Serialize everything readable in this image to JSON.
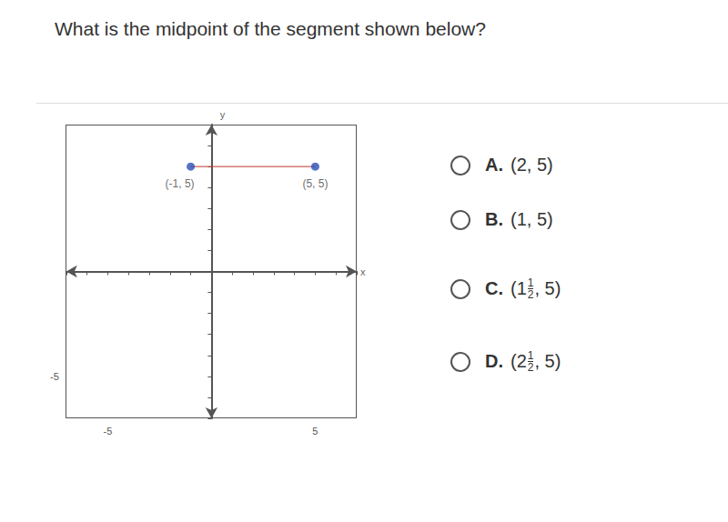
{
  "question": "What is the midpoint of the segment shown below?",
  "chart_data": {
    "type": "line",
    "xlabel": "x",
    "ylabel": "y",
    "xlim": [
      -7,
      7
    ],
    "ylim": [
      -7,
      7
    ],
    "xticks": [
      -5,
      5
    ],
    "yticks": [
      -5
    ],
    "grid": false,
    "color": "#c0392b",
    "marker": "circle",
    "points": [
      {
        "x": -1,
        "y": 5,
        "label": "(-1, 5)"
      },
      {
        "x": 5,
        "y": 5,
        "label": "(5, 5)"
      }
    ]
  },
  "options": [
    {
      "letter": "A.",
      "before": "(2, 5)"
    },
    {
      "letter": "B.",
      "before": "(1, 5)"
    },
    {
      "letter": "C.",
      "before": "(1",
      "frac": [
        "1",
        "2"
      ],
      "after": ", 5)"
    },
    {
      "letter": "D.",
      "before": "(2",
      "frac": [
        "1",
        "2"
      ],
      "after": ", 5)"
    }
  ]
}
